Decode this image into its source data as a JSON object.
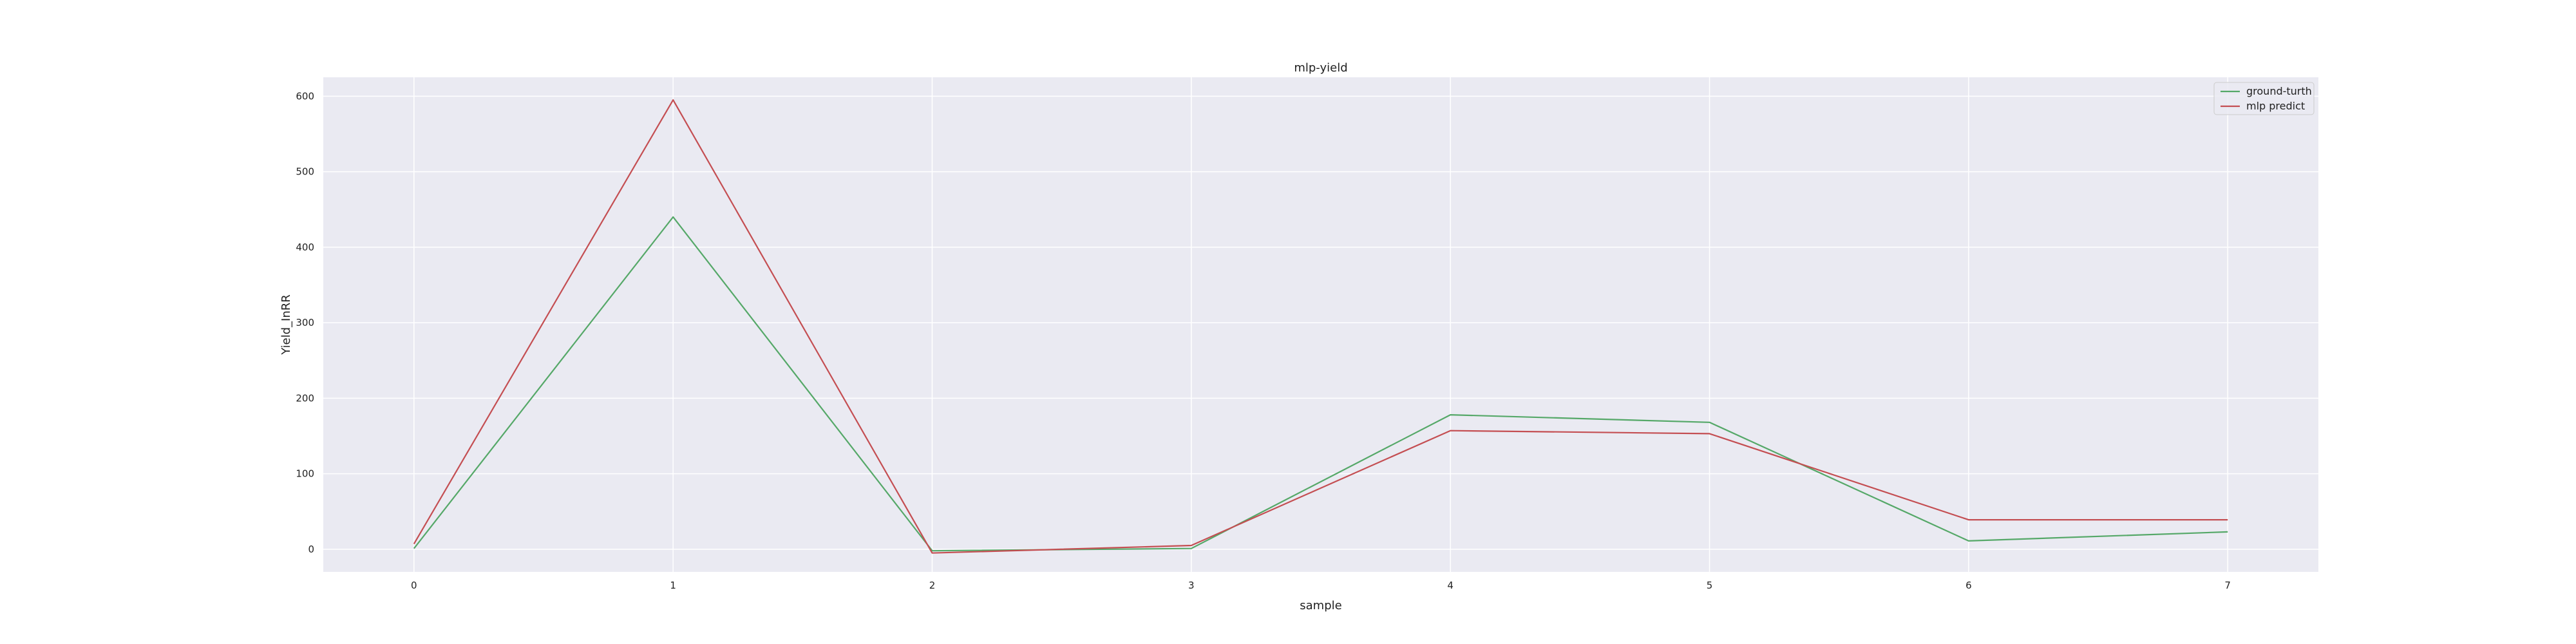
{
  "chart_data": {
    "type": "line",
    "title": "mlp-yield",
    "xlabel": "sample",
    "ylabel": "Yield_InRR",
    "x": [
      0,
      1,
      2,
      3,
      4,
      5,
      6,
      7
    ],
    "xticks": [
      "0",
      "1",
      "2",
      "3",
      "4",
      "5",
      "6",
      "7"
    ],
    "yticks": [
      "0",
      "100",
      "200",
      "300",
      "400",
      "500",
      "600"
    ],
    "xlim": [
      -0.35,
      7.35
    ],
    "ylim": [
      -30,
      625
    ],
    "grid": true,
    "legend_position": "top-right",
    "colors": {
      "background": "#eaeaf2",
      "grid": "#ffffff"
    },
    "series": [
      {
        "name": "ground-turth",
        "color": "#55a868",
        "values": [
          1,
          440,
          -2,
          1,
          178,
          168,
          11,
          23
        ]
      },
      {
        "name": "mlp predict",
        "color": "#c44e52",
        "values": [
          7,
          595,
          -5,
          5,
          157,
          153,
          39,
          39
        ]
      }
    ]
  }
}
